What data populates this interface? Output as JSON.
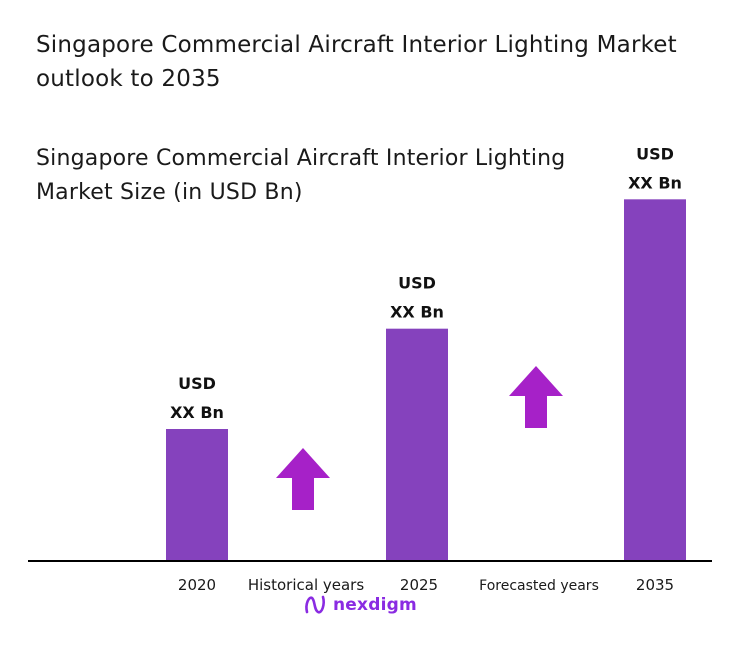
{
  "title": "Singapore Commercial Aircraft Interior Lighting Market outlook to 2035",
  "brand": {
    "name": "nexdigm",
    "icon": "nexdigm-logo-icon",
    "color": "#8a2be2"
  },
  "colors": {
    "bar": "#8542bd",
    "arrow": "#a621c8",
    "axis": "#000000"
  },
  "chart_data": {
    "type": "bar",
    "title": "Singapore Commercial Aircraft Interior Lighting Market Size (in USD Bn)",
    "categories": [
      "2020",
      "2025",
      "2035"
    ],
    "values": [
      1,
      1.76,
      2.74
    ],
    "value_note": "relative bar heights; 2020 = 1 (actual values shown as placeholders)",
    "data_labels": [
      [
        "USD",
        "XX Bn"
      ],
      [
        "USD",
        "XX Bn"
      ],
      [
        "USD",
        "XX Bn"
      ]
    ],
    "period_labels": [
      "Historical years",
      "Forecasted years"
    ],
    "growth_arrows": [
      "up-arrow-icon",
      "up-arrow-icon"
    ],
    "grid": false,
    "legend": "none"
  }
}
